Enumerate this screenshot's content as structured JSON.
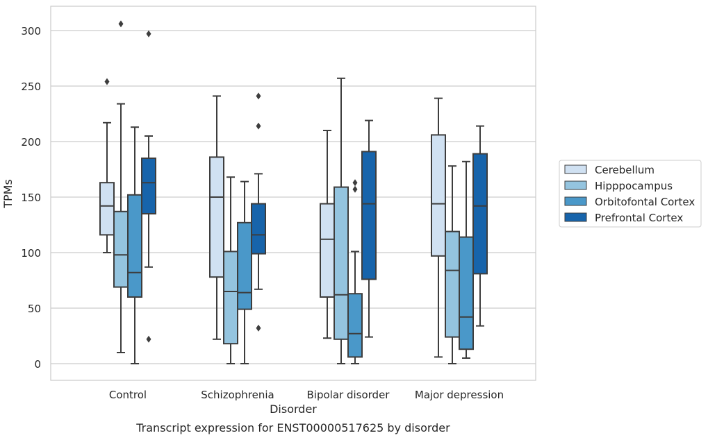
{
  "caption": "Transcript expression for ENST00000517625 by disorder",
  "chart_data": {
    "type": "box",
    "title": "",
    "xlabel": "Disorder",
    "ylabel": "TPMs",
    "ylim": [
      -15,
      322
    ],
    "yticks": [
      0,
      50,
      100,
      150,
      200,
      250,
      300
    ],
    "grid": "horizontal",
    "legend_position": "right",
    "categories": [
      "Control",
      "Schizophrenia",
      "Bipolar disorder",
      "Major depression"
    ],
    "series": [
      {
        "name": "Cerebellum",
        "color": "#d0e1f2",
        "boxes": [
          {
            "whislo": 100,
            "q1": 116,
            "med": 142,
            "q3": 163,
            "whishi": 217,
            "fliers": [
              254
            ]
          },
          {
            "whislo": 22,
            "q1": 78,
            "med": 150,
            "q3": 186,
            "whishi": 241,
            "fliers": []
          },
          {
            "whislo": 23,
            "q1": 60,
            "med": 112,
            "q3": 144,
            "whishi": 210,
            "fliers": []
          },
          {
            "whislo": 6,
            "q1": 97,
            "med": 144,
            "q3": 206,
            "whishi": 239,
            "fliers": []
          }
        ]
      },
      {
        "name": "Hipppocampus",
        "color": "#94c4df",
        "boxes": [
          {
            "whislo": 10,
            "q1": 69,
            "med": 98,
            "q3": 137,
            "whishi": 234,
            "fliers": [
              306
            ]
          },
          {
            "whislo": 0,
            "q1": 18,
            "med": 65,
            "q3": 101,
            "whishi": 168,
            "fliers": []
          },
          {
            "whislo": 0,
            "q1": 22,
            "med": 62,
            "q3": 159,
            "whishi": 257,
            "fliers": []
          },
          {
            "whislo": 0,
            "q1": 24,
            "med": 84,
            "q3": 119,
            "whishi": 178,
            "fliers": []
          }
        ]
      },
      {
        "name": "Orbitofontal Cortex",
        "color": "#4a98c9",
        "boxes": [
          {
            "whislo": 0,
            "q1": 60,
            "med": 82,
            "q3": 152,
            "whishi": 213,
            "fliers": []
          },
          {
            "whislo": 0,
            "q1": 49,
            "med": 64,
            "q3": 127,
            "whishi": 164,
            "fliers": []
          },
          {
            "whislo": 0,
            "q1": 6,
            "med": 27,
            "q3": 63,
            "whishi": 101,
            "fliers": [
              157,
              163
            ]
          },
          {
            "whislo": 5,
            "q1": 13,
            "med": 42,
            "q3": 114,
            "whishi": 182,
            "fliers": []
          }
        ]
      },
      {
        "name": "Prefrontal Cortex",
        "color": "#1764ab",
        "boxes": [
          {
            "whislo": 87,
            "q1": 135,
            "med": 163,
            "q3": 185,
            "whishi": 205,
            "fliers": [
              22,
              297
            ]
          },
          {
            "whislo": 67,
            "q1": 99,
            "med": 116,
            "q3": 144,
            "whishi": 171,
            "fliers": [
              32,
              214,
              241
            ]
          },
          {
            "whislo": 24,
            "q1": 76,
            "med": 144,
            "q3": 191,
            "whishi": 219,
            "fliers": []
          },
          {
            "whislo": 34,
            "q1": 81,
            "med": 142,
            "q3": 189,
            "whishi": 214,
            "fliers": []
          }
        ]
      }
    ]
  }
}
